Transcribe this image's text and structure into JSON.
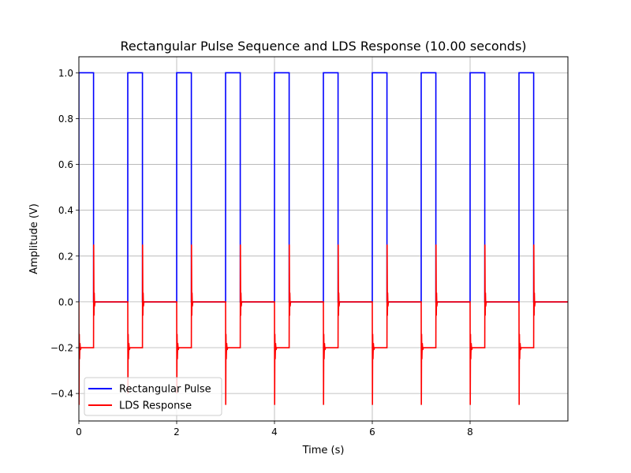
{
  "chart_data": {
    "type": "line",
    "title": "Rectangular Pulse Sequence and LDS Response (10.00 seconds)",
    "xlabel": "Time (s)",
    "ylabel": "Amplitude (V)",
    "xlim": [
      0,
      10
    ],
    "ylim": [
      -0.52,
      1.07
    ],
    "x_ticks": [
      0,
      2,
      4,
      6,
      8
    ],
    "y_ticks": [
      -0.4,
      -0.2,
      0.0,
      0.2,
      0.4,
      0.6,
      0.8,
      1.0
    ],
    "x_tick_labels": [
      "0",
      "2",
      "4",
      "6",
      "8"
    ],
    "y_tick_labels": [
      "−0.4",
      "−0.2",
      "0.0",
      "0.2",
      "0.4",
      "0.6",
      "0.8",
      "1.0"
    ],
    "grid": true,
    "legend_position": "bottom-left",
    "signal": {
      "period": 1.0,
      "pulse_width": 0.3,
      "pulse_count": 10,
      "pulse_high": 1.0,
      "pulse_low": 0.0
    },
    "series": [
      {
        "name": "Rectangular Pulse",
        "color": "#0000ff",
        "x": [
          0,
          0,
          0.3,
          0.3,
          1,
          1,
          1.3,
          1.3,
          2,
          2,
          2.3,
          2.3,
          3,
          3,
          3.3,
          3.3,
          4,
          4,
          4.3,
          4.3,
          5,
          5,
          5.3,
          5.3,
          6,
          6,
          6.3,
          6.3,
          7,
          7,
          7.3,
          7.3,
          8,
          8,
          8.3,
          8.3,
          9,
          9,
          9.3,
          9.3,
          10
        ],
        "y": [
          0,
          1,
          1,
          0,
          0,
          1,
          1,
          0,
          0,
          1,
          1,
          0,
          0,
          1,
          1,
          0,
          0,
          1,
          1,
          0,
          0,
          1,
          1,
          0,
          0,
          1,
          1,
          0,
          0,
          1,
          1,
          0,
          0,
          1,
          1,
          0,
          0,
          1,
          1,
          0,
          0
        ]
      },
      {
        "name": "LDS Response",
        "color": "#ff0000",
        "steady_high": -0.2,
        "steady_low": 0.0,
        "rise_spike_min": -0.45,
        "fall_spike_max": 0.25,
        "fall_undershoot": -0.06
      }
    ]
  }
}
